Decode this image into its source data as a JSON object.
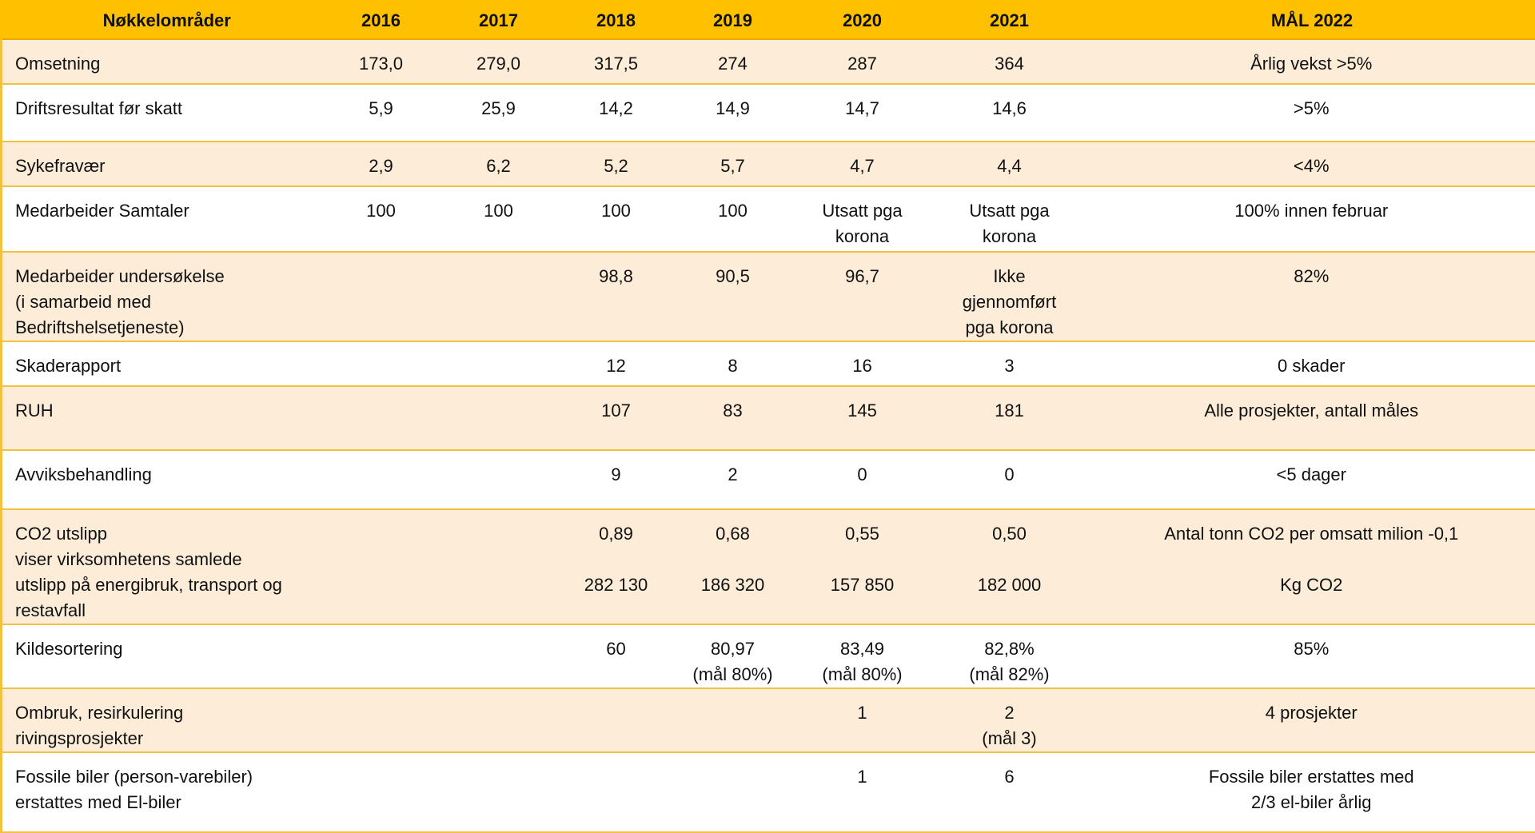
{
  "header": {
    "label": "Nøkkelområder",
    "years": [
      "2016",
      "2017",
      "2018",
      "2019",
      "2020",
      "2021"
    ],
    "goal": "MÅL 2022"
  },
  "rows": [
    {
      "label": [
        "Omsetning"
      ],
      "v2016": [
        "173,0"
      ],
      "v2017": [
        "279,0"
      ],
      "v2018": [
        "317,5"
      ],
      "v2019": [
        "274"
      ],
      "v2020": [
        "287"
      ],
      "v2021": [
        "364"
      ],
      "goal": [
        "Årlig vekst >5%"
      ]
    },
    {
      "label": [
        "Driftsresultat før skatt"
      ],
      "v2016": [
        "5,9"
      ],
      "v2017": [
        "25,9"
      ],
      "v2018": [
        "14,2"
      ],
      "v2019": [
        "14,9"
      ],
      "v2020": [
        "14,7"
      ],
      "v2021": [
        "14,6"
      ],
      "goal": [
        ">5%"
      ]
    },
    {
      "label": [
        "Sykefravær"
      ],
      "v2016": [
        "2,9"
      ],
      "v2017": [
        "6,2"
      ],
      "v2018": [
        "5,2"
      ],
      "v2019": [
        "5,7"
      ],
      "v2020": [
        "4,7"
      ],
      "v2021": [
        "4,4"
      ],
      "goal": [
        "<4%"
      ]
    },
    {
      "label": [
        "Medarbeider Samtaler"
      ],
      "v2016": [
        "100"
      ],
      "v2017": [
        "100"
      ],
      "v2018": [
        "100"
      ],
      "v2019": [
        "100"
      ],
      "v2020": [
        "Utsatt pga",
        "korona"
      ],
      "v2021": [
        "Utsatt pga",
        "korona"
      ],
      "goal": [
        "100% innen februar"
      ]
    },
    {
      "label": [
        "Medarbeider undersøkelse",
        "(i samarbeid med",
        "Bedriftshelsetjeneste)"
      ],
      "v2016": [],
      "v2017": [],
      "v2018": [
        "98,8"
      ],
      "v2019": [
        "90,5"
      ],
      "v2020": [
        "96,7"
      ],
      "v2021": [
        "Ikke",
        "gjennomført",
        "pga korona"
      ],
      "goal": [
        "82%"
      ]
    },
    {
      "label": [
        "Skaderapport"
      ],
      "v2016": [],
      "v2017": [],
      "v2018": [
        "12"
      ],
      "v2019": [
        "8"
      ],
      "v2020": [
        "16"
      ],
      "v2021": [
        "3"
      ],
      "goal": [
        "0 skader"
      ]
    },
    {
      "label": [
        "RUH"
      ],
      "v2016": [],
      "v2017": [],
      "v2018": [
        "107"
      ],
      "v2019": [
        "83"
      ],
      "v2020": [
        "145"
      ],
      "v2021": [
        "181"
      ],
      "goal": [
        "Alle prosjekter, antall måles"
      ]
    },
    {
      "label": [
        "Avviksbehandling"
      ],
      "v2016": [],
      "v2017": [],
      "v2018": [
        "9"
      ],
      "v2019": [
        "2"
      ],
      "v2020": [
        "0"
      ],
      "v2021": [
        "0"
      ],
      "goal": [
        "<5 dager"
      ]
    },
    {
      "label": [
        "CO2 utslipp",
        "viser virksomhetens samlede",
        "utslipp på energibruk, transport og",
        "restavfall"
      ],
      "v2016": [],
      "v2017": [],
      "v2018": [
        "0,89",
        "",
        "282 130"
      ],
      "v2019": [
        "0,68",
        "",
        "186 320"
      ],
      "v2020": [
        "0,55",
        "",
        "157 850"
      ],
      "v2021": [
        "0,50",
        "",
        "182 000"
      ],
      "goal": [
        "Antal tonn CO2 per omsatt milion -0,1",
        "",
        "Kg  CO2"
      ]
    },
    {
      "label": [
        "Kildesortering"
      ],
      "v2016": [],
      "v2017": [],
      "v2018": [
        "60"
      ],
      "v2019": [
        "80,97",
        "(mål 80%)"
      ],
      "v2020": [
        "83,49",
        "(mål 80%)"
      ],
      "v2021": [
        "82,8%",
        "(mål 82%)"
      ],
      "goal": [
        "85%"
      ]
    },
    {
      "label": [
        "Ombruk, resirkulering",
        "rivingsprosjekter"
      ],
      "v2016": [],
      "v2017": [],
      "v2018": [],
      "v2019": [],
      "v2020": [
        "1"
      ],
      "v2021": [
        "2",
        "(mål 3)"
      ],
      "goal": [
        "4 prosjekter"
      ]
    },
    {
      "label": [
        "Fossile biler (person-varebiler)",
        "erstattes med El-biler"
      ],
      "v2016": [],
      "v2017": [],
      "v2018": [],
      "v2019": [],
      "v2020": [
        "1"
      ],
      "v2021": [
        "6"
      ],
      "goal": [
        "Fossile biler erstattes med",
        "2/3 el-biler årlig"
      ]
    }
  ],
  "colors": {
    "header_bg": "#ffc000",
    "row_alt_bg": "#fcecd8",
    "border": "#f2c13d"
  }
}
